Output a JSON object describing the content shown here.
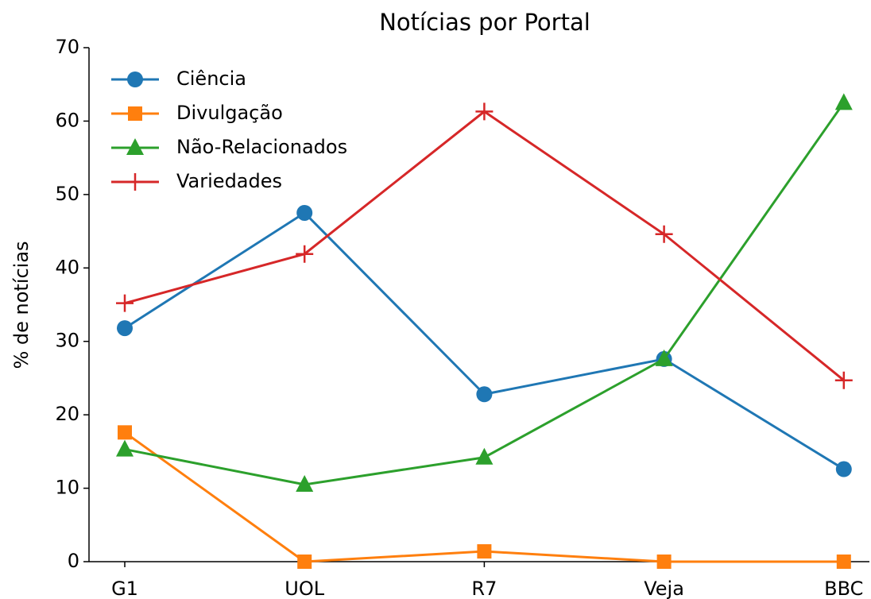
{
  "chart_data": {
    "type": "line",
    "title": "Notícias por Portal",
    "ylabel": "% de notícias",
    "categories": [
      "G1",
      "UOL",
      "R7",
      "Veja",
      "BBC"
    ],
    "series": [
      {
        "name": "Ciência",
        "color": "#1f77b4",
        "marker": "circle",
        "values": [
          31.8,
          47.5,
          22.8,
          27.6,
          12.6
        ]
      },
      {
        "name": "Divulgação",
        "color": "#ff7f0e",
        "marker": "square",
        "values": [
          17.6,
          0,
          1.4,
          0,
          0
        ]
      },
      {
        "name": "Não-Relacionados",
        "color": "#2ca02c",
        "marker": "triangle",
        "values": [
          15.3,
          10.5,
          14.2,
          27.6,
          62.5
        ]
      },
      {
        "name": "Variedades",
        "color": "#d62728",
        "marker": "plus",
        "values": [
          35.2,
          41.9,
          61.3,
          44.6,
          24.7
        ]
      }
    ],
    "ylim": [
      0,
      70
    ],
    "yticks": [
      0,
      10,
      20,
      30,
      40,
      50,
      60,
      70
    ],
    "legend": "upper left"
  }
}
